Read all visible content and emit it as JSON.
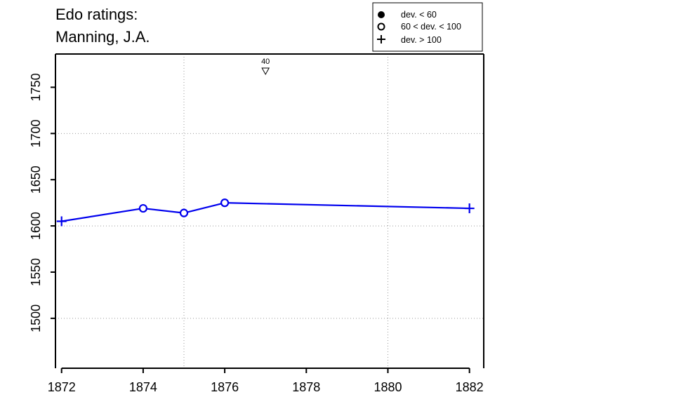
{
  "title_line1": "Edo ratings:",
  "title_line2": "Manning, J.A.",
  "legend": [
    {
      "symbol": "filled-circle",
      "label": "dev. < 60"
    },
    {
      "symbol": "open-circle",
      "label": "60 < dev. < 100"
    },
    {
      "symbol": "plus",
      "label": "dev. > 100"
    }
  ],
  "colors": {
    "series": "#0000ee",
    "axis": "#000000",
    "grid": "#9a9a9a"
  },
  "chart_data": {
    "type": "line",
    "title": "Edo ratings: Manning, J.A.",
    "xlabel": "",
    "ylabel": "",
    "xlim": [
      1871.85,
      1882.35
    ],
    "ylim": [
      1446,
      1786
    ],
    "x_ticks": [
      1872,
      1874,
      1876,
      1878,
      1880,
      1882
    ],
    "y_ticks": [
      1500,
      1550,
      1600,
      1650,
      1700,
      1750
    ],
    "grid": "dotted",
    "grid_x": [
      1875,
      1880
    ],
    "grid_y": [
      1500,
      1600,
      1700
    ],
    "legend_position": "top-right",
    "series": [
      {
        "points": [
          {
            "x": 1872,
            "y": 1605,
            "marker": "plus"
          },
          {
            "x": 1874,
            "y": 1619,
            "marker": "open-circle"
          },
          {
            "x": 1875,
            "y": 1614,
            "marker": "open-circle"
          },
          {
            "x": 1876,
            "y": 1625,
            "marker": "open-circle"
          },
          {
            "x": 1882,
            "y": 1619,
            "marker": "plus"
          }
        ]
      }
    ],
    "annotations": [
      {
        "x": 1877,
        "label": "40",
        "marker": "down-triangle"
      }
    ]
  }
}
